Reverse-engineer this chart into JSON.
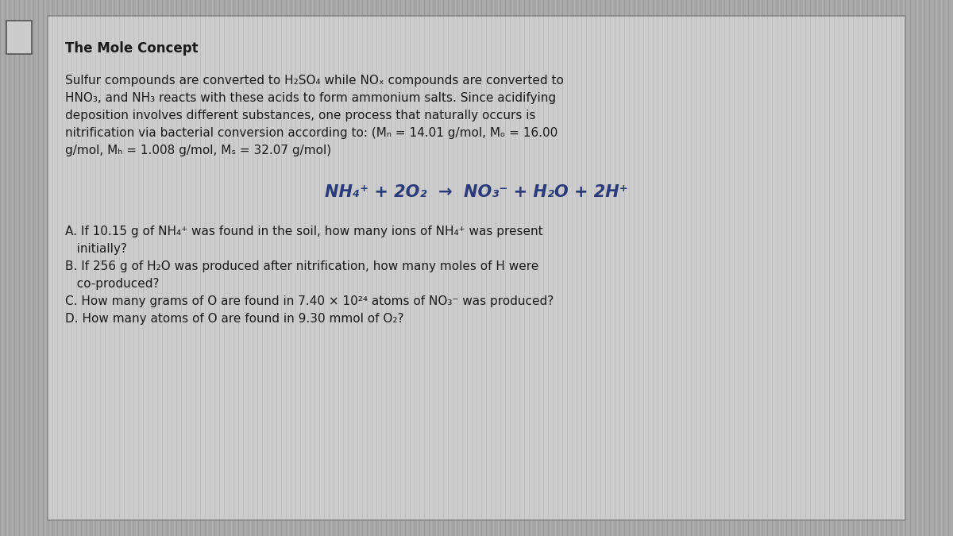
{
  "title": "The Mole Concept",
  "bg_stripe_color": "#b0b0b0",
  "bg_base": "#a8a8a8",
  "card_bg": "#d0d0d0",
  "card_border": "#888888",
  "text_color": "#1a1a1a",
  "equation_color": "#2a3a7a",
  "para_line1": "Sulfur compounds are converted to H₂SO₄ while NOₓ compounds are converted to",
  "para_line2": "HNO₃, and NH₃ reacts with these acids to form ammonium salts. Since acidifying",
  "para_line3": "deposition involves different substances, one process that naturally occurs is",
  "para_line4": "nitrification via bacterial conversion according to: (Mₙ = 14.01 g/mol, Mₒ = 16.00",
  "para_line5": "g/mol, Mₕ = 1.008 g/mol, Mₛ = 32.07 g/mol)",
  "equation": "NH₄⁺ + 2O₂  →  NO₃⁻ + H₂O + 2H⁺",
  "q_a1": "A. If 10.15 g of NH₄⁺ was found in the soil, how many ions of NH₄⁺ was present",
  "q_a2": "   initially?",
  "q_b1": "B. If 256 g of H₂O was produced after nitrification, how many moles of H were",
  "q_b2": "   co-produced?",
  "q_c": "C. How many grams of O are found in 7.40 × 10²⁴ atoms of NO₃⁻ was produced?",
  "q_d": "D. How many atoms of O are found in 9.30 mmol of O₂?",
  "title_fontsize": 12,
  "para_fontsize": 11,
  "eq_fontsize": 15,
  "q_fontsize": 11
}
